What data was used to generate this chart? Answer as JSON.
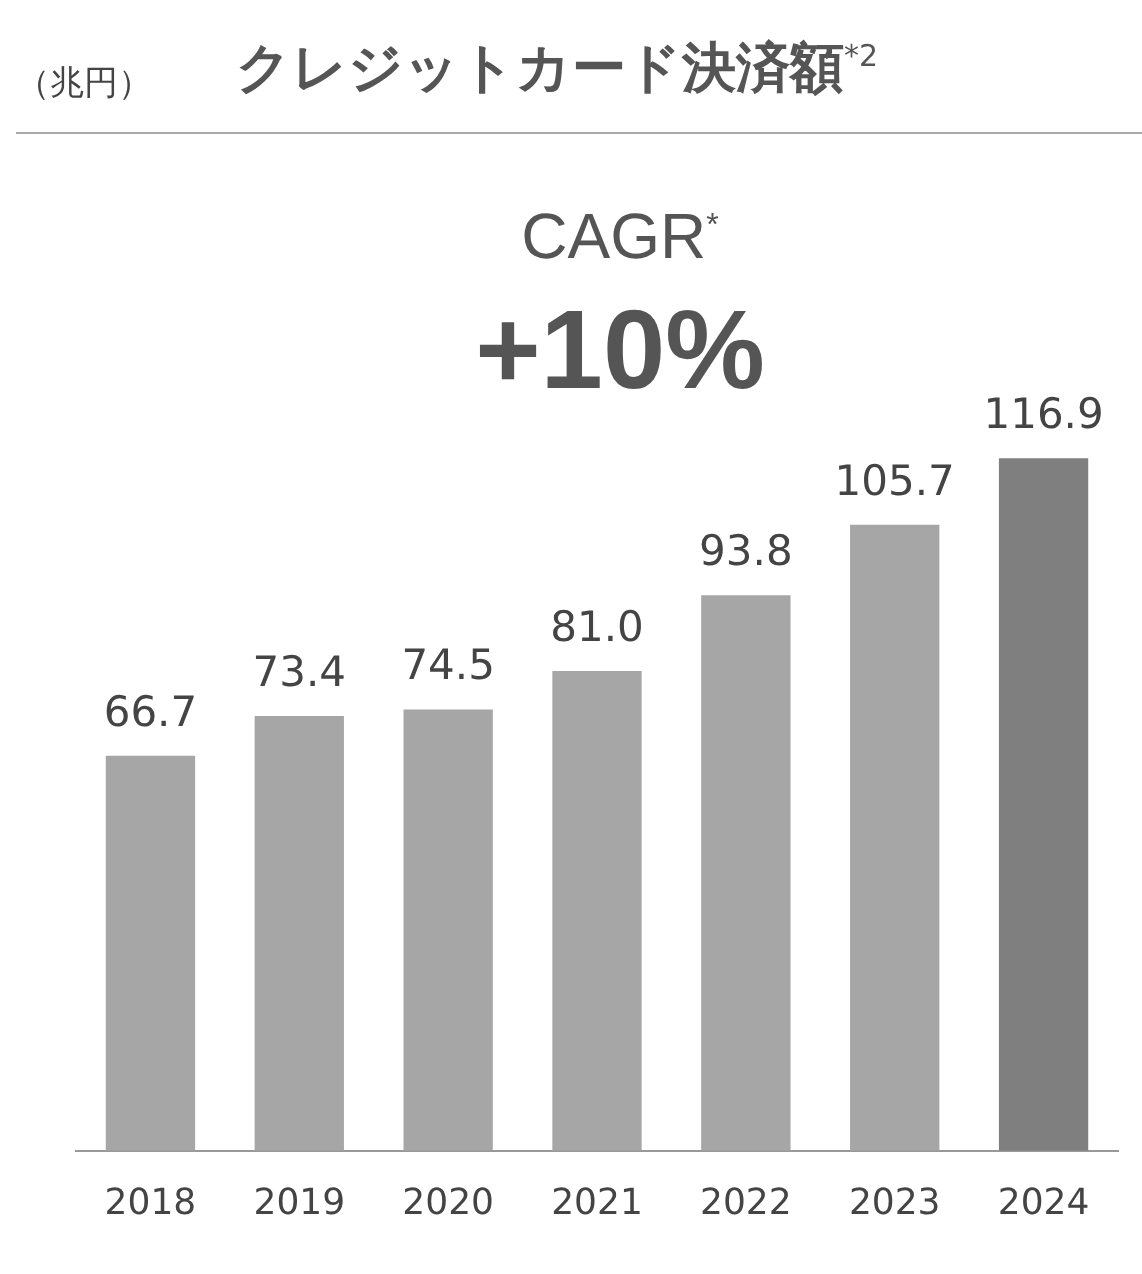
{
  "chart_data": {
    "type": "bar",
    "title": "クレジットカード決済額$^{*2}$",
    "annotations": [
      "（兆円）",
      "CAGR$^{*}$",
      "+10%"
    ],
    "categories": [
      "2018",
      "2019",
      "2020",
      "2021",
      "2022",
      "2023",
      "2024"
    ],
    "values": [
      66.7,
      73.4,
      74.5,
      81.0,
      93.8,
      105.7,
      116.9
    ],
    "value_labels": [
      "66.7",
      "73.4",
      "74.5",
      "81.0",
      "93.8",
      "105.7",
      "116.9"
    ],
    "colors": [
      "#a6a6a6",
      "#a6a6a6",
      "#a6a6a6",
      "#a6a6a6",
      "#a6a6a6",
      "#a6a6a6",
      "#7f7f7f"
    ],
    "grid": false,
    "legend": false
  }
}
